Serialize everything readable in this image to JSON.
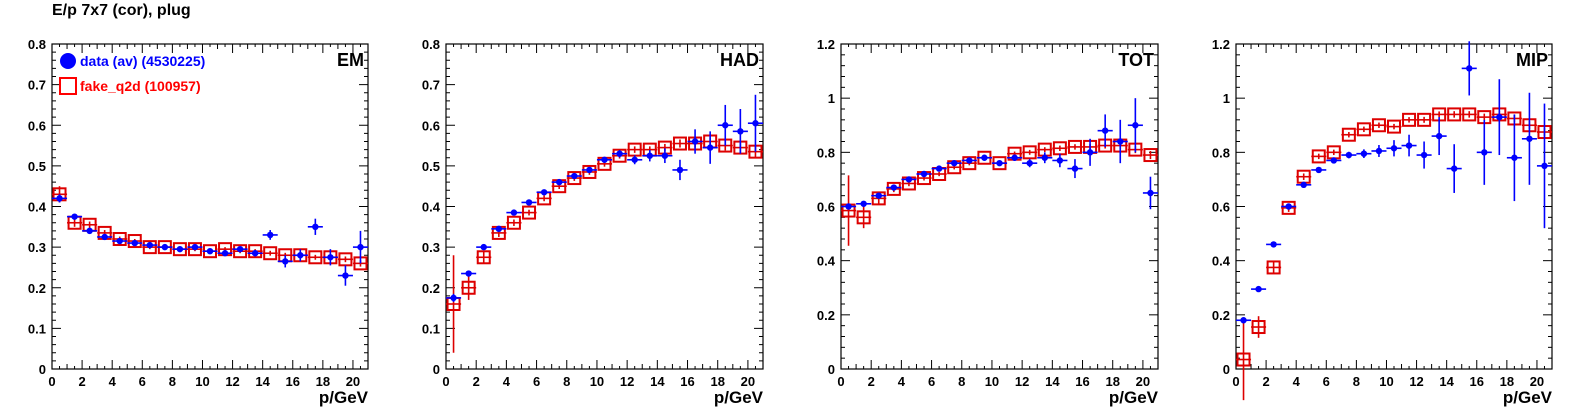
{
  "page": {
    "title": "E/p 7x7 (cor), plug"
  },
  "legend": {
    "placement": "top-left of first panel",
    "entries": [
      {
        "label": "data (av) (4530225)",
        "color": "#0000ff",
        "marker": "filled-circle"
      },
      {
        "label": "fake_q2d (100957)",
        "color": "#ff0000",
        "marker": "open-square"
      }
    ]
  },
  "colors": {
    "data": "#0000ff",
    "fake": "#dd0000",
    "axis": "#000000"
  },
  "chart_data": [
    {
      "type": "scatter",
      "title": "EM",
      "xlabel": "p/GeV",
      "ylabel": "",
      "xlim": [
        0,
        21
      ],
      "ylim": [
        0,
        0.8
      ],
      "xticks": [
        0,
        2,
        4,
        6,
        8,
        10,
        12,
        14,
        16,
        18,
        20
      ],
      "yticks": [
        0,
        0.1,
        0.2,
        0.3,
        0.4,
        0.5,
        0.6,
        0.7,
        0.8
      ],
      "ytick_labels": [
        "0",
        "0.1",
        "0.2",
        "0.3",
        "0.4",
        "0.5",
        "0.6",
        "0.7",
        "0.8"
      ],
      "series": [
        {
          "name": "data (av) (4530225)",
          "color": "#0000ff",
          "marker": "filled-circle",
          "x": [
            0.5,
            1.5,
            2.5,
            3.5,
            4.5,
            5.5,
            6.5,
            7.5,
            8.5,
            9.5,
            10.5,
            11.5,
            12.5,
            13.5,
            14.5,
            15.5,
            16.5,
            17.5,
            18.5,
            19.5,
            20.5
          ],
          "y": [
            0.42,
            0.375,
            0.34,
            0.325,
            0.315,
            0.31,
            0.305,
            0.3,
            0.295,
            0.3,
            0.29,
            0.285,
            0.295,
            0.285,
            0.33,
            0.265,
            0.28,
            0.35,
            0.275,
            0.23,
            0.3
          ],
          "yerr": [
            0.01,
            0.005,
            0.004,
            0.003,
            0.003,
            0.003,
            0.003,
            0.003,
            0.003,
            0.004,
            0.004,
            0.005,
            0.006,
            0.008,
            0.012,
            0.015,
            0.015,
            0.02,
            0.02,
            0.025,
            0.04
          ]
        },
        {
          "name": "fake_q2d (100957)",
          "color": "#dd0000",
          "marker": "open-square",
          "x": [
            0.5,
            1.5,
            2.5,
            3.5,
            4.5,
            5.5,
            6.5,
            7.5,
            8.5,
            9.5,
            10.5,
            11.5,
            12.5,
            13.5,
            14.5,
            15.5,
            16.5,
            17.5,
            18.5,
            19.5,
            20.5
          ],
          "y": [
            0.43,
            0.36,
            0.355,
            0.335,
            0.32,
            0.315,
            0.3,
            0.3,
            0.295,
            0.295,
            0.29,
            0.295,
            0.29,
            0.29,
            0.285,
            0.28,
            0.28,
            0.275,
            0.275,
            0.27,
            0.26
          ],
          "yerr": [
            0.02,
            0.01,
            0.008,
            0.007,
            0.006,
            0.005,
            0.005,
            0.005,
            0.005,
            0.005,
            0.005,
            0.005,
            0.005,
            0.005,
            0.006,
            0.006,
            0.006,
            0.006,
            0.007,
            0.007,
            0.008
          ]
        }
      ]
    },
    {
      "type": "scatter",
      "title": "HAD",
      "xlabel": "p/GeV",
      "ylabel": "",
      "xlim": [
        0,
        21
      ],
      "ylim": [
        0,
        0.8
      ],
      "xticks": [
        0,
        2,
        4,
        6,
        8,
        10,
        12,
        14,
        16,
        18,
        20
      ],
      "yticks": [
        0,
        0.1,
        0.2,
        0.3,
        0.4,
        0.5,
        0.6,
        0.7,
        0.8
      ],
      "ytick_labels": [
        "0",
        "0.1",
        "0.2",
        "0.3",
        "0.4",
        "0.5",
        "0.6",
        "0.7",
        "0.8"
      ],
      "series": [
        {
          "name": "data (av) (4530225)",
          "color": "#0000ff",
          "marker": "filled-circle",
          "x": [
            0.5,
            1.5,
            2.5,
            3.5,
            4.5,
            5.5,
            6.5,
            7.5,
            8.5,
            9.5,
            10.5,
            11.5,
            12.5,
            13.5,
            14.5,
            15.5,
            16.5,
            17.5,
            18.5,
            19.5,
            20.5
          ],
          "y": [
            0.175,
            0.235,
            0.3,
            0.345,
            0.385,
            0.41,
            0.435,
            0.46,
            0.475,
            0.49,
            0.515,
            0.53,
            0.515,
            0.525,
            0.525,
            0.49,
            0.56,
            0.545,
            0.6,
            0.585,
            0.605
          ],
          "yerr": [
            0.01,
            0.006,
            0.004,
            0.004,
            0.004,
            0.004,
            0.004,
            0.005,
            0.005,
            0.006,
            0.007,
            0.009,
            0.011,
            0.014,
            0.018,
            0.025,
            0.03,
            0.04,
            0.05,
            0.055,
            0.07
          ]
        },
        {
          "name": "fake_q2d (100957)",
          "color": "#dd0000",
          "marker": "open-square",
          "x": [
            0.5,
            1.5,
            2.5,
            3.5,
            4.5,
            5.5,
            6.5,
            7.5,
            8.5,
            9.5,
            10.5,
            11.5,
            12.5,
            13.5,
            14.5,
            15.5,
            16.5,
            17.5,
            18.5,
            19.5,
            20.5
          ],
          "y": [
            0.16,
            0.2,
            0.275,
            0.335,
            0.36,
            0.385,
            0.42,
            0.45,
            0.47,
            0.485,
            0.505,
            0.525,
            0.54,
            0.54,
            0.545,
            0.555,
            0.555,
            0.56,
            0.55,
            0.545,
            0.535
          ],
          "yerr": [
            0.12,
            0.03,
            0.015,
            0.01,
            0.008,
            0.007,
            0.007,
            0.007,
            0.007,
            0.007,
            0.007,
            0.007,
            0.008,
            0.008,
            0.009,
            0.01,
            0.01,
            0.01,
            0.012,
            0.012,
            0.015
          ]
        }
      ]
    },
    {
      "type": "scatter",
      "title": "TOT",
      "xlabel": "p/GeV",
      "ylabel": "",
      "xlim": [
        0,
        21
      ],
      "ylim": [
        0,
        1.2
      ],
      "xticks": [
        0,
        2,
        4,
        6,
        8,
        10,
        12,
        14,
        16,
        18,
        20
      ],
      "yticks": [
        0,
        0.2,
        0.4,
        0.6,
        0.8,
        1.0,
        1.2
      ],
      "ytick_labels": [
        "0",
        "0.2",
        "0.4",
        "0.6",
        "0.8",
        "1",
        "1.2"
      ],
      "series": [
        {
          "name": "data (av) (4530225)",
          "color": "#0000ff",
          "marker": "filled-circle",
          "x": [
            0.5,
            1.5,
            2.5,
            3.5,
            4.5,
            5.5,
            6.5,
            7.5,
            8.5,
            9.5,
            10.5,
            11.5,
            12.5,
            13.5,
            14.5,
            15.5,
            16.5,
            17.5,
            18.5,
            19.5,
            20.5
          ],
          "y": [
            0.6,
            0.61,
            0.64,
            0.67,
            0.7,
            0.72,
            0.74,
            0.76,
            0.77,
            0.78,
            0.76,
            0.78,
            0.76,
            0.78,
            0.77,
            0.74,
            0.8,
            0.88,
            0.84,
            0.9,
            0.65
          ],
          "yerr": [
            0.01,
            0.006,
            0.005,
            0.005,
            0.005,
            0.005,
            0.005,
            0.006,
            0.006,
            0.007,
            0.009,
            0.012,
            0.015,
            0.02,
            0.025,
            0.035,
            0.05,
            0.06,
            0.08,
            0.1,
            0.06
          ]
        },
        {
          "name": "fake_q2d (100957)",
          "color": "#dd0000",
          "marker": "open-square",
          "x": [
            0.5,
            1.5,
            2.5,
            3.5,
            4.5,
            5.5,
            6.5,
            7.5,
            8.5,
            9.5,
            10.5,
            11.5,
            12.5,
            13.5,
            14.5,
            15.5,
            16.5,
            17.5,
            18.5,
            19.5,
            20.5
          ],
          "y": [
            0.585,
            0.56,
            0.63,
            0.665,
            0.685,
            0.705,
            0.72,
            0.745,
            0.76,
            0.78,
            0.76,
            0.795,
            0.8,
            0.81,
            0.815,
            0.82,
            0.82,
            0.825,
            0.825,
            0.81,
            0.79
          ],
          "yerr": [
            0.13,
            0.04,
            0.02,
            0.012,
            0.01,
            0.009,
            0.008,
            0.008,
            0.008,
            0.008,
            0.008,
            0.008,
            0.009,
            0.009,
            0.01,
            0.01,
            0.011,
            0.011,
            0.012,
            0.013,
            0.015
          ]
        }
      ]
    },
    {
      "type": "scatter",
      "title": "MIP",
      "xlabel": "p/GeV",
      "ylabel": "",
      "xlim": [
        0,
        21
      ],
      "ylim": [
        0,
        1.2
      ],
      "xticks": [
        0,
        2,
        4,
        6,
        8,
        10,
        12,
        14,
        16,
        18,
        20
      ],
      "yticks": [
        0,
        0.2,
        0.4,
        0.6,
        0.8,
        1.0,
        1.2
      ],
      "ytick_labels": [
        "0",
        "0.2",
        "0.4",
        "0.6",
        "0.8",
        "1",
        "1.2"
      ],
      "series": [
        {
          "name": "data (av) (4530225)",
          "color": "#0000ff",
          "marker": "filled-circle",
          "x": [
            0.5,
            1.5,
            2.5,
            3.5,
            4.5,
            5.5,
            6.5,
            7.5,
            8.5,
            9.5,
            10.5,
            11.5,
            12.5,
            13.5,
            14.5,
            15.5,
            16.5,
            17.5,
            18.5,
            19.5,
            20.5
          ],
          "y": [
            0.18,
            0.295,
            0.46,
            0.6,
            0.68,
            0.735,
            0.77,
            0.79,
            0.795,
            0.805,
            0.815,
            0.825,
            0.79,
            0.86,
            0.74,
            1.11,
            0.8,
            0.93,
            0.78,
            0.85,
            0.75
          ],
          "yerr": [
            0.01,
            0.006,
            0.005,
            0.005,
            0.005,
            0.006,
            0.008,
            0.012,
            0.016,
            0.022,
            0.03,
            0.04,
            0.05,
            0.07,
            0.09,
            0.1,
            0.12,
            0.14,
            0.16,
            0.17,
            0.23
          ]
        },
        {
          "name": "fake_q2d (100957)",
          "color": "#dd0000",
          "marker": "open-square",
          "x": [
            0.5,
            1.5,
            2.5,
            3.5,
            4.5,
            5.5,
            6.5,
            7.5,
            8.5,
            9.5,
            10.5,
            11.5,
            12.5,
            13.5,
            14.5,
            15.5,
            16.5,
            17.5,
            18.5,
            19.5,
            20.5
          ],
          "y": [
            0.035,
            0.155,
            0.375,
            0.595,
            0.71,
            0.785,
            0.8,
            0.865,
            0.885,
            0.9,
            0.895,
            0.92,
            0.92,
            0.94,
            0.94,
            0.94,
            0.93,
            0.94,
            0.925,
            0.9,
            0.875
          ],
          "yerr": [
            0.15,
            0.04,
            0.02,
            0.015,
            0.012,
            0.01,
            0.01,
            0.01,
            0.01,
            0.01,
            0.01,
            0.01,
            0.011,
            0.011,
            0.012,
            0.012,
            0.013,
            0.013,
            0.014,
            0.015,
            0.016
          ]
        }
      ]
    }
  ]
}
